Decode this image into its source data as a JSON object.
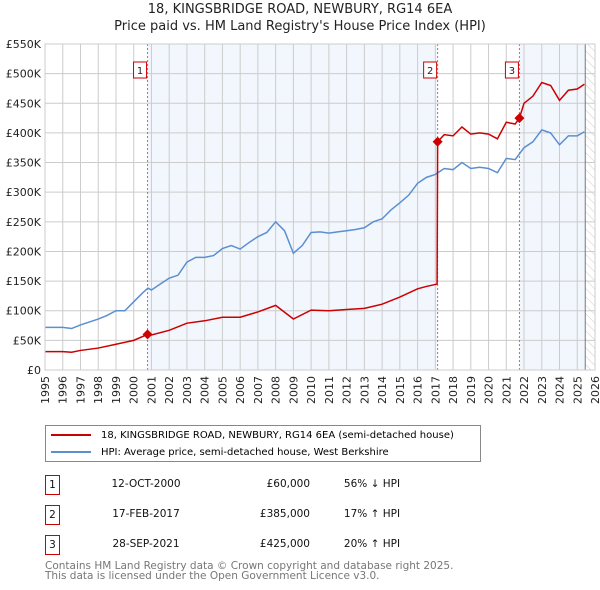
{
  "title": "18, KINGSBRIDGE ROAD, NEWBURY, RG14 6EA",
  "subtitle": "Price paid vs. HM Land Registry's House Price Index (HPI)",
  "chart_data": {
    "type": "line",
    "xlim": [
      1995,
      2026
    ],
    "ylim": [
      0,
      550000
    ],
    "y_ticks": [
      {
        "v": 0,
        "label": "£0"
      },
      {
        "v": 50000,
        "label": "£50K"
      },
      {
        "v": 100000,
        "label": "£100K"
      },
      {
        "v": 150000,
        "label": "£150K"
      },
      {
        "v": 200000,
        "label": "£200K"
      },
      {
        "v": 250000,
        "label": "£250K"
      },
      {
        "v": 300000,
        "label": "£300K"
      },
      {
        "v": 350000,
        "label": "£350K"
      },
      {
        "v": 400000,
        "label": "£400K"
      },
      {
        "v": 450000,
        "label": "£450K"
      },
      {
        "v": 500000,
        "label": "£500K"
      },
      {
        "v": 550000,
        "label": "£550K"
      }
    ],
    "x_ticks": [
      "1995",
      "1996",
      "1997",
      "1998",
      "1999",
      "2000",
      "2001",
      "2002",
      "2003",
      "2004",
      "2005",
      "2006",
      "2007",
      "2008",
      "2009",
      "2010",
      "2011",
      "2012",
      "2013",
      "2014",
      "2015",
      "2016",
      "2017",
      "2018",
      "2019",
      "2020",
      "2021",
      "2022",
      "2023",
      "2024",
      "2025",
      "2026"
    ],
    "grid": true,
    "series": [
      {
        "name": "18, KINGSBRIDGE ROAD, NEWBURY, RG14 6EA (semi-detached house)",
        "color": "#cc0000",
        "x": [
          1995,
          1996,
          1996.5,
          1997,
          1998,
          1999,
          2000,
          2000.78,
          2001,
          2002,
          2003,
          2004,
          2005,
          2006,
          2007,
          2008,
          2009,
          2010,
          2011,
          2012,
          2013,
          2014,
          2015,
          2016,
          2016.5,
          2017.1,
          2017.13,
          2017.5,
          2018,
          2018.5,
          2019,
          2019.5,
          2020,
          2020.5,
          2021,
          2021.5,
          2021.74,
          2022,
          2022.5,
          2023,
          2023.5,
          2024,
          2024.5,
          2025,
          2025.4
        ],
        "y": [
          31000,
          31000,
          30000,
          33000,
          37000,
          43500,
          50000,
          60000,
          59000,
          67000,
          79000,
          83000,
          89000,
          89000,
          98000,
          109000,
          86000,
          101000,
          100000,
          102000,
          104000,
          111000,
          123000,
          137000,
          141000,
          145000,
          385000,
          397000,
          395000,
          410000,
          398000,
          400000,
          398000,
          390000,
          418000,
          415000,
          425000,
          450000,
          462000,
          485000,
          480000,
          455000,
          472000,
          474000,
          482000
        ]
      },
      {
        "name": "HPI: Average price, semi-detached house, West Berkshire",
        "color": "#5b8fd0",
        "x": [
          1995,
          1996,
          1996.5,
          1997,
          1998,
          1998.5,
          1999,
          1999.5,
          2000,
          2000.5,
          2000.8,
          2001,
          2001.5,
          2002,
          2002.5,
          2003,
          2003.5,
          2004,
          2004.5,
          2005,
          2005.5,
          2006,
          2006.5,
          2007,
          2007.5,
          2008,
          2008.5,
          2009,
          2009.5,
          2010,
          2010.5,
          2011,
          2011.5,
          2012,
          2012.5,
          2013,
          2013.5,
          2014,
          2014.5,
          2015,
          2015.5,
          2016,
          2016.5,
          2017,
          2017.5,
          2018,
          2018.5,
          2019,
          2019.5,
          2020,
          2020.5,
          2021,
          2021.5,
          2022,
          2022.5,
          2023,
          2023.5,
          2024,
          2024.5,
          2025,
          2025.4
        ],
        "y": [
          72000,
          72000,
          70000,
          76000,
          86000,
          92000,
          100000,
          100000,
          115000,
          130000,
          138000,
          135000,
          145000,
          155000,
          160000,
          182000,
          190000,
          190000,
          193000,
          205000,
          210000,
          204000,
          215000,
          225000,
          232000,
          250000,
          235000,
          197000,
          210000,
          232000,
          233000,
          231000,
          233000,
          235000,
          237000,
          240000,
          250000,
          255000,
          270000,
          282000,
          295000,
          315000,
          325000,
          330000,
          340000,
          338000,
          350000,
          340000,
          342000,
          340000,
          333000,
          357000,
          355000,
          375000,
          385000,
          405000,
          400000,
          380000,
          395000,
          395000,
          402000
        ]
      }
    ],
    "sales": [
      {
        "n": "1",
        "x": 2000.78,
        "y": 60000,
        "date": "12-OCT-2000",
        "price": "£60,000",
        "hpi": "56% ↓ HPI"
      },
      {
        "n": "2",
        "x": 2017.13,
        "y": 385000,
        "date": "17-FEB-2017",
        "price": "£385,000",
        "hpi": "17% ↑ HPI"
      },
      {
        "n": "3",
        "x": 2021.74,
        "y": 425000,
        "date": "28-SEP-2021",
        "price": "£425,000",
        "hpi": "20% ↑ HPI"
      }
    ],
    "data_end": 2025.45
  },
  "footer": [
    "Contains HM Land Registry data © Crown copyright and database right 2025.",
    "This data is licensed under the Open Government Licence v3.0."
  ]
}
